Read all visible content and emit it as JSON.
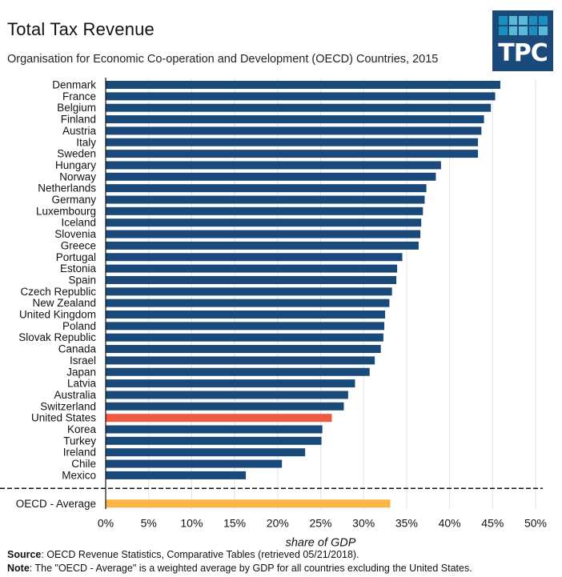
{
  "header": {
    "title": "Total Tax Revenue",
    "subtitle": "Organisation for Economic Co-operation and Development (OECD) Countries, 2015"
  },
  "logo": {
    "text": "TPC",
    "background": "#1a4a7a",
    "cell_colors": [
      "#1c8fbf",
      "#5db8d8",
      "#5db8d8",
      "#1c8fbf",
      "#1c8fbf",
      "#1c8fbf",
      "#5db8d8",
      "#5db8d8",
      "#1c8fbf",
      "#5db8d8"
    ]
  },
  "footer": {
    "source_label": "Source",
    "source_text": ": OECD Revenue Statistics, Comparative Tables (retrieved 05/21/2018).",
    "note_label": "Note",
    "note_text": ": The \"OECD - Average\" is a weighted average by GDP for all countries excluding the United States."
  },
  "chart_data": {
    "type": "bar",
    "orientation": "horizontal",
    "title": "Total Tax Revenue",
    "subtitle": "Organisation for Economic Co-operation and Development (OECD) Countries, 2015",
    "xlabel": "share of GDP",
    "ylabel": "",
    "xlim": [
      0,
      50
    ],
    "xticks": [
      "0%",
      "5%",
      "10%",
      "15%",
      "20%",
      "25%",
      "30%",
      "35%",
      "40%",
      "45%",
      "50%"
    ],
    "grid": true,
    "colors": {
      "default": "#1a4a7a",
      "highlight": "#f05a40",
      "average": "#fbb447",
      "grid": "#e6e6e6",
      "axis": "#111111"
    },
    "categories": [
      "Denmark",
      "France",
      "Belgium",
      "Finland",
      "Austria",
      "Italy",
      "Sweden",
      "Hungary",
      "Norway",
      "Netherlands",
      "Germany",
      "Luxembourg",
      "Iceland",
      "Slovenia",
      "Greece",
      "Portugal",
      "Estonia",
      "Spain",
      "Czech Republic",
      "New Zealand",
      "United Kingdom",
      "Poland",
      "Slovak Republic",
      "Canada",
      "Israel",
      "Japan",
      "Latvia",
      "Australia",
      "Switzerland",
      "United States",
      "Korea",
      "Turkey",
      "Ireland",
      "Chile",
      "Mexico"
    ],
    "values": [
      45.9,
      45.3,
      44.8,
      44.0,
      43.7,
      43.3,
      43.3,
      39.0,
      38.4,
      37.3,
      37.1,
      36.9,
      36.7,
      36.6,
      36.4,
      34.5,
      33.9,
      33.8,
      33.3,
      33.0,
      32.5,
      32.4,
      32.3,
      32.0,
      31.3,
      30.7,
      29.0,
      28.2,
      27.7,
      26.3,
      25.2,
      25.1,
      23.2,
      20.5,
      16.3
    ],
    "highlight_category": "United States",
    "average": {
      "label": "OECD - Average",
      "value": 33.1
    }
  }
}
